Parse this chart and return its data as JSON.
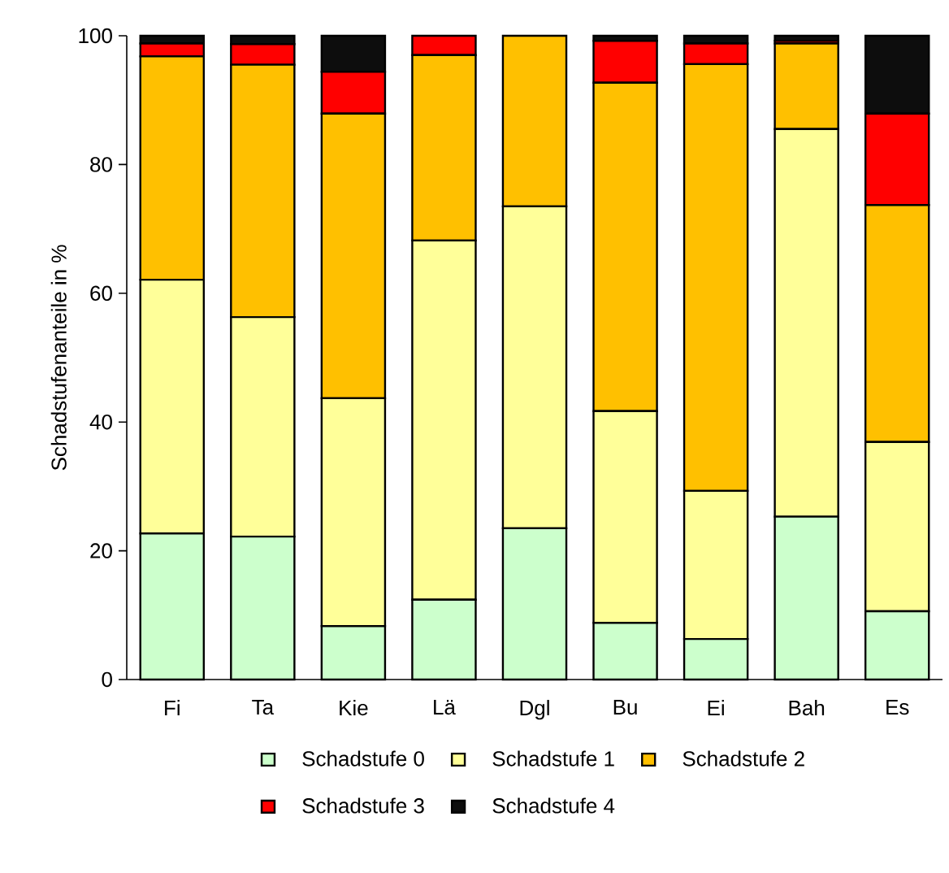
{
  "chart_data": {
    "type": "bar",
    "stacked": true,
    "ylabel": "Schadstufenanteile in %",
    "categories": [
      "Fi",
      "Ta",
      "Kie",
      "Lä",
      "Dgl",
      "Bu",
      "Ei",
      "Bah",
      "Es"
    ],
    "series": [
      {
        "name": "Schadstufe 0",
        "color": "#ccffcc",
        "values": [
          22.7,
          22.2,
          8.3,
          12.4,
          23.5,
          8.8,
          6.3,
          25.3,
          10.6
        ]
      },
      {
        "name": "Schadstufe 1",
        "color": "#ffff99",
        "values": [
          39.4,
          34.1,
          35.4,
          55.8,
          50.0,
          32.9,
          23.0,
          60.2,
          26.3
        ]
      },
      {
        "name": "Schadstufe 2",
        "color": "#ffc000",
        "values": [
          34.7,
          39.2,
          44.2,
          28.8,
          26.5,
          51.0,
          66.3,
          13.3,
          36.8
        ]
      },
      {
        "name": "Schadstufe 3",
        "color": "#ff0000",
        "values": [
          2.0,
          3.2,
          6.5,
          3.0,
          0,
          6.5,
          3.2,
          0.4,
          14.2
        ]
      },
      {
        "name": "Schadstufe 4",
        "color": "#0d0d0d",
        "values": [
          1.2,
          1.3,
          5.6,
          0,
          0,
          0.8,
          1.2,
          0.8,
          12.1
        ]
      }
    ],
    "ylim": [
      0,
      100
    ],
    "yticks": [
      0,
      20,
      40,
      60,
      80,
      100
    ],
    "legend": "bottom"
  }
}
